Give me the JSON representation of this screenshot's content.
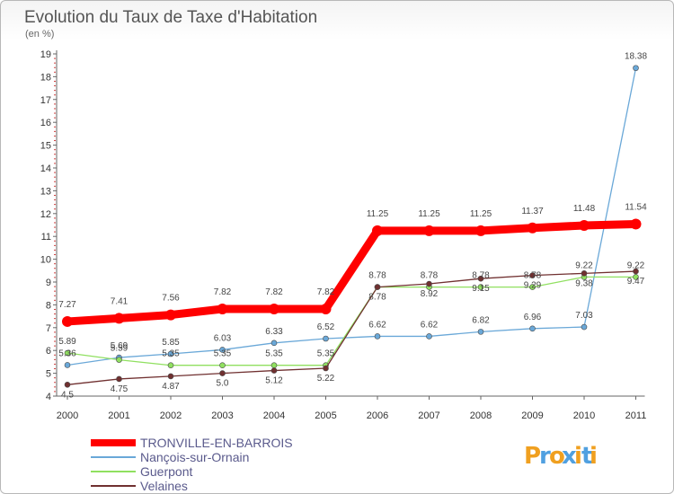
{
  "chart_data": {
    "type": "line",
    "title": "Evolution du Taux de Taxe d'Habitation",
    "subtitle": "(en %)",
    "xlabel": "",
    "ylabel": "",
    "x": [
      "2000",
      "2001",
      "2002",
      "2003",
      "2004",
      "2005",
      "2006",
      "2007",
      "2008",
      "2009",
      "2010",
      "2011"
    ],
    "ylim": [
      4,
      19
    ],
    "yticks": [
      "4",
      "5",
      "6",
      "7",
      "8",
      "9",
      "10",
      "11",
      "12",
      "13",
      "14",
      "15",
      "16",
      "17",
      "18",
      "19"
    ],
    "grid": false,
    "legend_position": "bottom-left",
    "series": [
      {
        "name": "TRONVILLE-EN-BARROIS",
        "color": "#ff0000",
        "values": [
          7.27,
          7.41,
          7.56,
          7.82,
          7.82,
          7.82,
          11.25,
          11.25,
          11.25,
          11.37,
          11.48,
          11.54
        ],
        "labels": [
          "7.27",
          "7.41",
          "7.56",
          "7.82",
          "7.82",
          "7.82",
          "11.25",
          "11.25",
          "11.25",
          "11.37",
          "11.48",
          "11.54"
        ]
      },
      {
        "name": "Nançois-sur-Ornain",
        "color": "#6aa8d8",
        "values": [
          5.36,
          5.69,
          5.85,
          6.03,
          6.33,
          6.52,
          6.62,
          6.62,
          6.82,
          6.96,
          7.03,
          18.38
        ],
        "labels": [
          "5.36",
          "5.69",
          "5.85",
          "6.03",
          "6.33",
          "6.52",
          "6.62",
          "6.62",
          "6.82",
          "6.96",
          "7.03",
          "18.38"
        ]
      },
      {
        "name": "Guerpont",
        "color": "#90e060",
        "values": [
          5.89,
          5.59,
          5.35,
          5.35,
          5.35,
          5.35,
          8.78,
          8.78,
          8.78,
          8.78,
          9.22,
          9.22
        ],
        "labels": [
          "5.89",
          "5.59",
          "5.35",
          "5.35",
          "5.35",
          "5.35",
          "8.78",
          "8.78",
          "8.78",
          "8.78",
          "9.22",
          "9.22"
        ]
      },
      {
        "name": "Velaines",
        "color": "#703030",
        "values": [
          4.5,
          4.75,
          4.87,
          5.0,
          5.12,
          5.22,
          8.78,
          8.92,
          9.15,
          9.29,
          9.38,
          9.47
        ],
        "labels": [
          "4.5",
          "4.75",
          "4.87",
          "5.0",
          "5.12",
          "5.22",
          "8.78",
          "8.92",
          "9.15",
          "9.29",
          "9.38",
          "9.47"
        ]
      }
    ]
  },
  "logo": {
    "text": "Proxiti",
    "letters": [
      "P",
      "r",
      "o",
      "x",
      "i",
      "t",
      "i"
    ],
    "colors": [
      "#f0a020",
      "#50a0e0",
      "#f0a020",
      "#50a0e0",
      "#f0a020",
      "#50a0e0",
      "#f0a020"
    ]
  }
}
